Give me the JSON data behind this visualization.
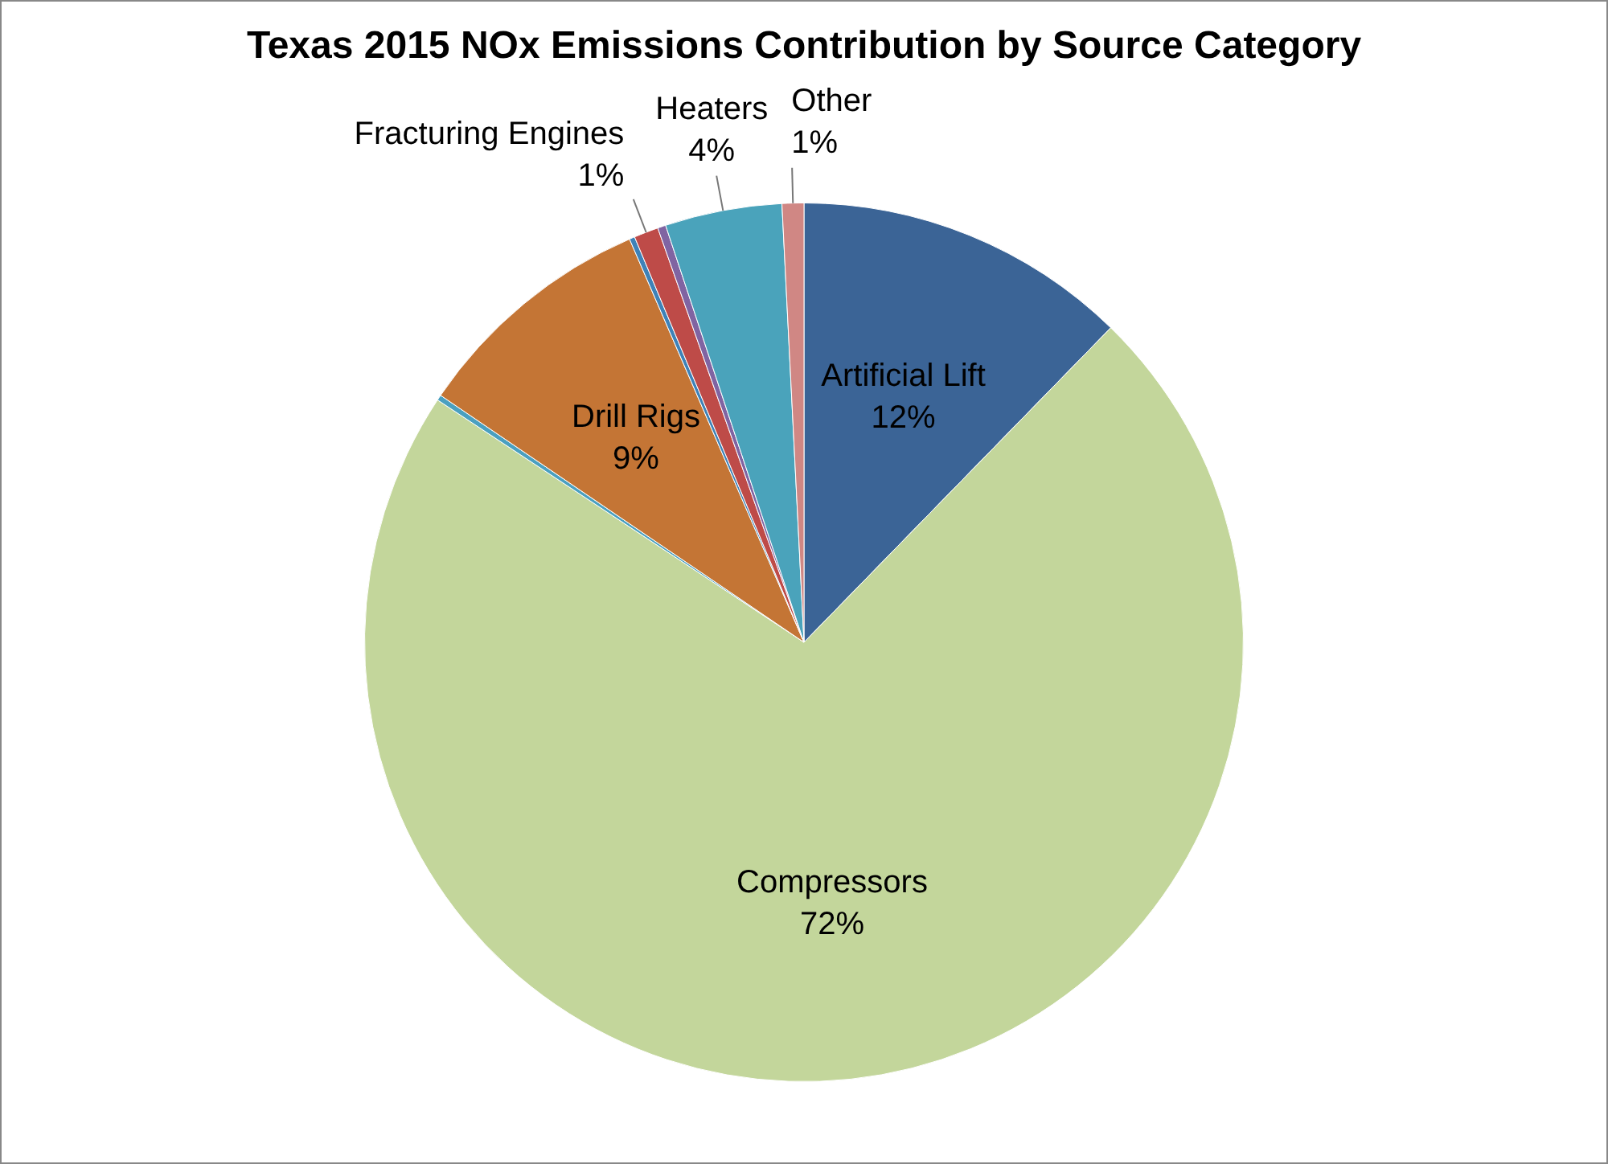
{
  "chart_data": {
    "type": "pie",
    "title": "Texas 2015 NOx Emissions Contribution by Source Category",
    "categories": [
      "Artificial Lift",
      "Compressors",
      null,
      "Drill Rigs",
      null,
      "Fracturing Engines",
      null,
      "Heaters",
      "Other"
    ],
    "values": [
      12.3,
      72.0,
      0.2,
      9.0,
      0.2,
      0.9,
      0.3,
      4.3,
      0.8
    ],
    "value_labels": [
      "12%",
      "72%",
      null,
      "9%",
      null,
      "1%",
      null,
      "4%",
      "1%"
    ],
    "colors": [
      "#3b6496",
      "#c3d69b",
      "#4aa0c0",
      "#c47535",
      "#3e82b8",
      "#be4b48",
      "#8064a2",
      "#4aa3bb",
      "#d08784"
    ],
    "legend": false
  }
}
